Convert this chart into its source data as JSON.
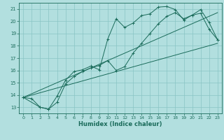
{
  "xlabel": "Humidex (Indice chaleur)",
  "xlim": [
    -0.5,
    23.5
  ],
  "ylim": [
    12.5,
    21.5
  ],
  "xticks": [
    0,
    1,
    2,
    3,
    4,
    5,
    6,
    7,
    8,
    9,
    10,
    11,
    12,
    13,
    14,
    15,
    16,
    17,
    18,
    19,
    20,
    21,
    22,
    23
  ],
  "yticks": [
    13,
    14,
    15,
    16,
    17,
    18,
    19,
    20,
    21
  ],
  "bg_color": "#b2dfdf",
  "grid_color": "#89c4c4",
  "line_color": "#1a6b5a",
  "line1_x": [
    0,
    1,
    2,
    3,
    4,
    5,
    6,
    7,
    8,
    9,
    10,
    11,
    12,
    13,
    14,
    15,
    16,
    17,
    18,
    19,
    20,
    21,
    22,
    23
  ],
  "line1_y": [
    13.8,
    13.7,
    13.0,
    12.85,
    13.9,
    15.2,
    15.9,
    16.05,
    16.35,
    16.05,
    18.55,
    20.2,
    19.5,
    19.85,
    20.45,
    20.6,
    21.15,
    21.2,
    20.95,
    20.1,
    20.5,
    20.65,
    19.35,
    18.5
  ],
  "line2_x": [
    0,
    2,
    3,
    4,
    5,
    6,
    7,
    8,
    9,
    10,
    11,
    12,
    13,
    14,
    15,
    16,
    17,
    18,
    19,
    20,
    21,
    22,
    23
  ],
  "line2_y": [
    13.8,
    13.0,
    12.85,
    13.4,
    14.9,
    15.5,
    15.9,
    16.2,
    16.4,
    16.8,
    16.0,
    16.3,
    17.4,
    18.2,
    19.0,
    19.8,
    20.4,
    20.7,
    20.2,
    20.5,
    20.95,
    19.9,
    18.5
  ],
  "line3_x": [
    0,
    23
  ],
  "line3_y": [
    13.8,
    18.2
  ],
  "line4_x": [
    0,
    23
  ],
  "line4_y": [
    13.8,
    20.7
  ]
}
